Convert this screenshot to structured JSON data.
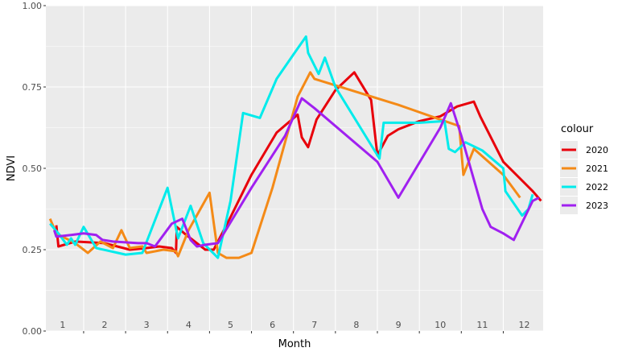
{
  "chart_data": {
    "type": "line",
    "xlabel": "Month",
    "ylabel": "NDVI",
    "xlim": [
      0.6,
      12.45
    ],
    "ylim": [
      0.0,
      1.0
    ],
    "x_ticks": [
      1,
      2,
      3,
      4,
      5,
      6,
      7,
      8,
      9,
      10,
      11,
      12
    ],
    "x_tick_labels": [
      "1",
      "2",
      "3",
      "4",
      "5",
      "6",
      "7",
      "8",
      "9",
      "10",
      "11",
      "12"
    ],
    "y_ticks": [
      0.0,
      0.25,
      0.5,
      0.75,
      1.0
    ],
    "y_tick_labels": [
      "0.00",
      "0.25",
      "0.50",
      "0.75",
      "1.00"
    ],
    "grid": true,
    "legend": {
      "title": "colour",
      "position": "right"
    },
    "series": [
      {
        "name": "2020",
        "color": "#e8000b",
        "points": [
          [
            0.85,
            0.325
          ],
          [
            0.9,
            0.26
          ],
          [
            1.3,
            0.275
          ],
          [
            2.0,
            0.27
          ],
          [
            2.6,
            0.25
          ],
          [
            3.0,
            0.255
          ],
          [
            3.3,
            0.26
          ],
          [
            3.6,
            0.255
          ],
          [
            3.7,
            0.24
          ],
          [
            3.72,
            0.32
          ],
          [
            3.9,
            0.3
          ],
          [
            4.2,
            0.27
          ],
          [
            4.4,
            0.25
          ],
          [
            4.6,
            0.25
          ],
          [
            5.0,
            0.35
          ],
          [
            5.5,
            0.48
          ],
          [
            6.1,
            0.61
          ],
          [
            6.6,
            0.665
          ],
          [
            6.7,
            0.595
          ],
          [
            6.85,
            0.565
          ],
          [
            7.05,
            0.65
          ],
          [
            7.5,
            0.74
          ],
          [
            7.95,
            0.795
          ],
          [
            8.35,
            0.71
          ],
          [
            8.5,
            0.54
          ],
          [
            8.75,
            0.6
          ],
          [
            9.0,
            0.62
          ],
          [
            9.5,
            0.645
          ],
          [
            10.0,
            0.66
          ],
          [
            10.4,
            0.69
          ],
          [
            10.8,
            0.705
          ],
          [
            10.95,
            0.66
          ],
          [
            11.5,
            0.52
          ],
          [
            12.2,
            0.43
          ],
          [
            12.4,
            0.4
          ]
        ]
      },
      {
        "name": "2021",
        "color": "#f48a17",
        "points": [
          [
            0.7,
            0.345
          ],
          [
            0.85,
            0.3
          ],
          [
            1.3,
            0.27
          ],
          [
            1.6,
            0.24
          ],
          [
            1.9,
            0.275
          ],
          [
            2.2,
            0.255
          ],
          [
            2.4,
            0.31
          ],
          [
            2.6,
            0.255
          ],
          [
            2.9,
            0.26
          ],
          [
            3.0,
            0.24
          ],
          [
            3.4,
            0.25
          ],
          [
            3.7,
            0.245
          ],
          [
            3.75,
            0.23
          ],
          [
            4.0,
            0.31
          ],
          [
            4.5,
            0.425
          ],
          [
            4.7,
            0.24
          ],
          [
            4.9,
            0.225
          ],
          [
            5.2,
            0.225
          ],
          [
            5.5,
            0.24
          ],
          [
            6.0,
            0.44
          ],
          [
            6.6,
            0.72
          ],
          [
            6.9,
            0.795
          ],
          [
            7.0,
            0.775
          ],
          [
            8.0,
            0.735
          ],
          [
            9.0,
            0.695
          ],
          [
            10.0,
            0.65
          ],
          [
            10.45,
            0.63
          ],
          [
            10.55,
            0.48
          ],
          [
            10.8,
            0.56
          ],
          [
            11.5,
            0.48
          ],
          [
            11.9,
            0.41
          ]
        ]
      },
      {
        "name": "2022",
        "color": "#00ebeb",
        "points": [
          [
            0.7,
            0.33
          ],
          [
            0.9,
            0.3
          ],
          [
            1.1,
            0.265
          ],
          [
            1.2,
            0.285
          ],
          [
            1.3,
            0.265
          ],
          [
            1.5,
            0.32
          ],
          [
            1.8,
            0.255
          ],
          [
            2.5,
            0.235
          ],
          [
            2.9,
            0.24
          ],
          [
            3.5,
            0.44
          ],
          [
            3.75,
            0.285
          ],
          [
            4.05,
            0.385
          ],
          [
            4.35,
            0.27
          ],
          [
            4.7,
            0.225
          ],
          [
            5.0,
            0.4
          ],
          [
            5.3,
            0.67
          ],
          [
            5.7,
            0.655
          ],
          [
            6.1,
            0.775
          ],
          [
            6.5,
            0.85
          ],
          [
            6.8,
            0.905
          ],
          [
            6.85,
            0.855
          ],
          [
            7.1,
            0.79
          ],
          [
            7.25,
            0.84
          ],
          [
            7.5,
            0.75
          ],
          [
            8.55,
            0.53
          ],
          [
            8.65,
            0.64
          ],
          [
            8.9,
            0.64
          ],
          [
            9.5,
            0.64
          ],
          [
            10.1,
            0.645
          ],
          [
            10.2,
            0.56
          ],
          [
            10.35,
            0.55
          ],
          [
            10.6,
            0.58
          ],
          [
            11.0,
            0.555
          ],
          [
            11.5,
            0.5
          ],
          [
            11.55,
            0.43
          ],
          [
            11.95,
            0.355
          ],
          [
            12.1,
            0.375
          ],
          [
            12.2,
            0.42
          ]
        ]
      },
      {
        "name": "2023",
        "color": "#a020f0",
        "points": [
          [
            0.8,
            0.31
          ],
          [
            0.85,
            0.29
          ],
          [
            1.2,
            0.295
          ],
          [
            1.5,
            0.3
          ],
          [
            1.8,
            0.295
          ],
          [
            1.95,
            0.28
          ],
          [
            2.2,
            0.275
          ],
          [
            2.8,
            0.27
          ],
          [
            3.0,
            0.27
          ],
          [
            3.2,
            0.26
          ],
          [
            3.6,
            0.33
          ],
          [
            3.85,
            0.345
          ],
          [
            4.05,
            0.28
          ],
          [
            4.2,
            0.26
          ],
          [
            4.4,
            0.265
          ],
          [
            4.7,
            0.27
          ],
          [
            5.5,
            0.44
          ],
          [
            6.3,
            0.6
          ],
          [
            6.7,
            0.715
          ],
          [
            7.0,
            0.685
          ],
          [
            8.5,
            0.52
          ],
          [
            9.0,
            0.41
          ],
          [
            10.0,
            0.625
          ],
          [
            10.25,
            0.7
          ],
          [
            10.5,
            0.6
          ],
          [
            11.0,
            0.375
          ],
          [
            11.2,
            0.32
          ],
          [
            11.5,
            0.3
          ],
          [
            11.75,
            0.28
          ],
          [
            12.2,
            0.4
          ],
          [
            12.35,
            0.41
          ]
        ]
      }
    ]
  }
}
